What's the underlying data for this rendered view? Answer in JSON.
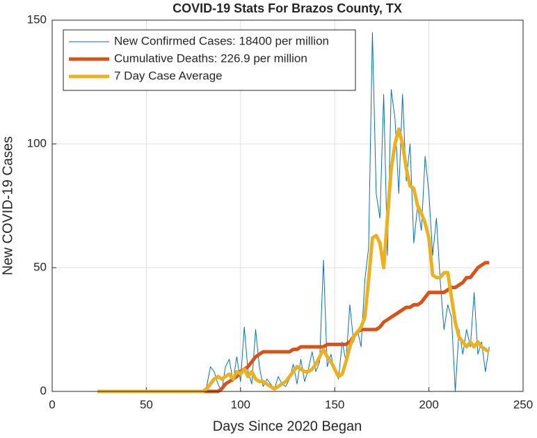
{
  "chart_data": {
    "type": "line",
    "title": "COVID-19 Stats For Brazos County, TX",
    "xlabel": "Days Since 2020 Began",
    "ylabel": "New COVID-19 Cases",
    "xlim": [
      0,
      250
    ],
    "ylim": [
      0,
      150
    ],
    "xticks": [
      0,
      50,
      100,
      150,
      200,
      250
    ],
    "yticks": [
      0,
      50,
      100,
      150
    ],
    "grid": true,
    "legend": "top-left",
    "x": [
      24,
      26,
      28,
      30,
      32,
      34,
      36,
      38,
      40,
      42,
      44,
      46,
      48,
      50,
      52,
      54,
      56,
      58,
      60,
      62,
      64,
      66,
      68,
      70,
      72,
      74,
      76,
      78,
      80,
      82,
      84,
      86,
      88,
      90,
      92,
      94,
      96,
      98,
      100,
      102,
      104,
      106,
      108,
      110,
      112,
      114,
      116,
      118,
      120,
      122,
      124,
      126,
      128,
      130,
      132,
      134,
      136,
      138,
      140,
      142,
      144,
      146,
      148,
      150,
      152,
      154,
      156,
      158,
      160,
      162,
      164,
      166,
      168,
      170,
      172,
      174,
      176,
      178,
      180,
      182,
      184,
      186,
      188,
      190,
      192,
      194,
      196,
      198,
      200,
      202,
      204,
      206,
      208,
      210,
      212,
      214,
      216,
      218,
      220,
      222,
      224,
      226,
      228,
      230,
      232
    ],
    "series": [
      {
        "name": "New Confirmed Cases: 18400 per million",
        "color": "#0072bd",
        "width": 1,
        "values": [
          0,
          0,
          0,
          0,
          0,
          0,
          0,
          0,
          0,
          0,
          0,
          0,
          0,
          0,
          0,
          0,
          0,
          0,
          0,
          0,
          0,
          0,
          0,
          0,
          0,
          0,
          0,
          0,
          0,
          2,
          10,
          8,
          3,
          0,
          10,
          13,
          4,
          14,
          4,
          26,
          8,
          3,
          25,
          10,
          2,
          5,
          3,
          1,
          6,
          3,
          2,
          5,
          11,
          3,
          13,
          4,
          9,
          16,
          8,
          12,
          53,
          10,
          15,
          8,
          5,
          20,
          12,
          35,
          20,
          25,
          18,
          45,
          58,
          145,
          80,
          70,
          120,
          55,
          122,
          110,
          80,
          120,
          85,
          100,
          60,
          75,
          65,
          95,
          80,
          55,
          70,
          45,
          25,
          35,
          30,
          0,
          25,
          15,
          25,
          18,
          40,
          15,
          20,
          8,
          18
        ]
      },
      {
        "name": "Cumulative Deaths: 226.9 per million",
        "color": "#d95319",
        "width": 5,
        "values": [
          0,
          0,
          0,
          0,
          0,
          0,
          0,
          0,
          0,
          0,
          0,
          0,
          0,
          0,
          0,
          0,
          0,
          0,
          0,
          0,
          0,
          0,
          0,
          0,
          0,
          0,
          0,
          0,
          0,
          0,
          0,
          0,
          0,
          1,
          3,
          4,
          5,
          6,
          8,
          9,
          10,
          12,
          14,
          15,
          16,
          16,
          16,
          16,
          16,
          16,
          16,
          16,
          17,
          17,
          18,
          18,
          18,
          18,
          18,
          18,
          18,
          19,
          19,
          19,
          19,
          19,
          19,
          20,
          22,
          24,
          25,
          25,
          25,
          25,
          25,
          26,
          28,
          29,
          30,
          31,
          32,
          33,
          34,
          34,
          35,
          35,
          36,
          38,
          40,
          40,
          40,
          40,
          40,
          41,
          42,
          42,
          43,
          44,
          46,
          46,
          48,
          50,
          51,
          52,
          52
        ]
      },
      {
        "name": "7 Day Case Average",
        "color": "#edb120",
        "width": 5,
        "values": [
          0,
          0,
          0,
          0,
          0,
          0,
          0,
          0,
          0,
          0,
          0,
          0,
          0,
          0,
          0,
          0,
          0,
          0,
          0,
          0,
          0,
          0,
          0,
          0,
          0,
          0,
          0,
          0,
          0,
          1,
          3,
          5,
          6,
          5,
          6,
          7,
          5,
          8,
          7,
          9,
          6,
          8,
          5,
          4,
          4,
          3,
          2,
          1,
          2,
          3,
          4,
          6,
          8,
          10,
          9,
          8,
          8,
          9,
          11,
          14,
          17,
          14,
          12,
          9,
          6,
          7,
          12,
          18,
          22,
          24,
          26,
          30,
          45,
          62,
          63,
          60,
          50,
          70,
          90,
          100,
          106,
          100,
          90,
          83,
          82,
          75,
          72,
          68,
          62,
          47,
          46,
          46,
          48,
          48,
          38,
          28,
          22,
          20,
          18,
          20,
          18,
          20,
          18,
          17,
          16
        ]
      }
    ]
  }
}
